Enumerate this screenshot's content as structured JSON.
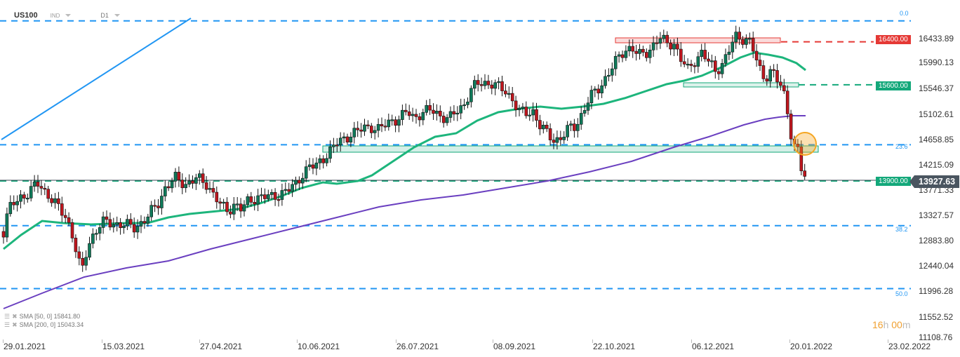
{
  "header": {
    "symbol": "US100",
    "symbol_type": "IND",
    "timeframe": "D1"
  },
  "legend": {
    "items": [
      {
        "label": "SMA [50, 0] 15841.80"
      },
      {
        "label": "SMA [200, 0] 15043.34"
      }
    ]
  },
  "timer": {
    "hours": "16",
    "h_unit": "h",
    "minutes": "00",
    "m_unit": "m"
  },
  "current_price": "13927.63",
  "levels": {
    "resistance_red": "16400.00",
    "support_green_1": "15600.00",
    "support_green_2": "13900.00"
  },
  "fib_labels": [
    "0.0",
    "23.6",
    "38.2",
    "50.0"
  ],
  "colors": {
    "bull": "#0f7a5a",
    "bear": "#c0161e",
    "sma50": "#1db57c",
    "sma200": "#6a3fc0",
    "fib": "#2196f3",
    "red_level": "#e53935",
    "green_level": "#13a87a",
    "current_tag": "#4a5560",
    "timer": "#f0a030"
  },
  "chart_data": {
    "type": "candlestick",
    "title": "US100 D1",
    "xlabel": "",
    "ylabel": "",
    "ylim": [
      11108.76,
      16876
    ],
    "x_tick_labels": [
      "29.01.2021",
      "15.03.2021",
      "27.04.2021",
      "10.06.2021",
      "26.07.2021",
      "08.09.2021",
      "22.10.2021",
      "06.12.2021",
      "20.01.2022",
      "23.02.2022"
    ],
    "y_tick_labels": [
      "16433.89",
      "15990.13",
      "15546.37",
      "15102.61",
      "14658.85",
      "14215.09",
      "13771.33",
      "13327.57",
      "12883.80",
      "12440.04",
      "11996.28",
      "11552.52",
      "11108.76"
    ],
    "horizontal_levels": [
      {
        "name": "resistance",
        "value": 16400.0,
        "color": "red",
        "style": "dashed"
      },
      {
        "name": "support",
        "value": 15600.0,
        "color": "green",
        "style": "dashed"
      },
      {
        "name": "support",
        "value": 13900.0,
        "color": "green",
        "style": "dashed"
      }
    ],
    "fibonacci": [
      {
        "label": "0.0",
        "value": 16764
      },
      {
        "label": "23.6",
        "value": 14458
      },
      {
        "label": "38.2",
        "value": 12952
      },
      {
        "label": "50.0",
        "value": 11781
      }
    ],
    "indicators": [
      {
        "name": "SMA 50",
        "last": 15841.8
      },
      {
        "name": "SMA 200",
        "last": 15043.34
      }
    ],
    "last_close": 13927.63,
    "series": [
      {
        "name": "close_approx",
        "x": [
          "29.01.2021",
          "15.03.2021",
          "27.04.2021",
          "10.06.2021",
          "26.07.2021",
          "08.09.2021",
          "22.10.2021",
          "06.12.2021",
          "20.01.2022"
        ],
        "values": [
          12900,
          12900,
          13800,
          14000,
          15100,
          15650,
          15450,
          16250,
          14350
        ]
      }
    ]
  }
}
